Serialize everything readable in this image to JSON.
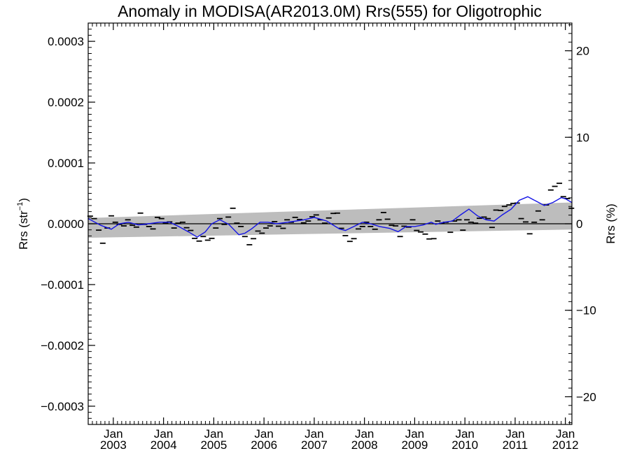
{
  "chart_data": {
    "type": "line",
    "title": "Anomaly in MODISA(AR2013.0M) Rrs(555) for Oligotrophic",
    "ylabel_left": "Rrs (str",
    "ylabel_left_sup": "−1",
    "ylabel_left_end": ")",
    "ylabel_right": "Rrs (%)",
    "xlim": [
      2002.5,
      2012.13
    ],
    "ylim_left": [
      -0.00033,
      0.00033
    ],
    "ylim_right": [
      -23.2,
      23.2
    ],
    "x_ticks": [
      {
        "x": 2003.0,
        "line1": "Jan",
        "line2": "2003"
      },
      {
        "x": 2004.0,
        "line1": "Jan",
        "line2": "2004"
      },
      {
        "x": 2005.0,
        "line1": "Jan",
        "line2": "2005"
      },
      {
        "x": 2006.0,
        "line1": "Jan",
        "line2": "2006"
      },
      {
        "x": 2007.0,
        "line1": "Jan",
        "line2": "2007"
      },
      {
        "x": 2008.0,
        "line1": "Jan",
        "line2": "2008"
      },
      {
        "x": 2009.0,
        "line1": "Jan",
        "line2": "2009"
      },
      {
        "x": 2010.0,
        "line1": "Jan",
        "line2": "2010"
      },
      {
        "x": 2011.0,
        "line1": "Jan",
        "line2": "2011"
      },
      {
        "x": 2012.0,
        "line1": "Jan",
        "line2": "2012"
      }
    ],
    "y_ticks_left": [
      {
        "v": 0.0003,
        "label": "0.0003"
      },
      {
        "v": 0.0002,
        "label": "0.0002"
      },
      {
        "v": 0.0001,
        "label": "0.0001"
      },
      {
        "v": 0.0,
        "label": "0.0000"
      },
      {
        "v": -0.0001,
        "label": "−0.0001"
      },
      {
        "v": -0.0002,
        "label": "−0.0002"
      },
      {
        "v": -0.0003,
        "label": "−0.0003"
      }
    ],
    "y_ticks_right": [
      {
        "v": 20,
        "label": "20"
      },
      {
        "v": 10,
        "label": "10"
      },
      {
        "v": 0,
        "label": "0"
      },
      {
        "v": -10,
        "label": "−10"
      },
      {
        "v": -20,
        "label": "−20"
      }
    ],
    "trend_band": {
      "x": [
        2002.5,
        2012.13
      ],
      "upper": [
        9.5e-06,
        3.5e-05
      ],
      "lower": [
        -2.3e-05,
        -9.5e-06
      ]
    },
    "zero_line": 0.0,
    "smoothed": {
      "x": [
        2002.5,
        2002.75,
        2002.96,
        2003.12,
        2003.3,
        2003.5,
        2003.7,
        2003.92,
        2004.12,
        2004.3,
        2004.5,
        2004.67,
        2004.83,
        2004.96,
        2005.12,
        2005.3,
        2005.5,
        2005.62,
        2005.75,
        2005.92,
        2006.08,
        2006.25,
        2006.42,
        2006.6,
        2006.8,
        2007.0,
        2007.25,
        2007.5,
        2007.62,
        2007.79,
        2007.96,
        2008.12,
        2008.3,
        2008.5,
        2008.67,
        2008.83,
        2009.0,
        2009.17,
        2009.33,
        2009.42,
        2009.58,
        2009.75,
        2009.92,
        2010.08,
        2010.25,
        2010.42,
        2010.58,
        2010.75,
        2010.92,
        2011.08,
        2011.25,
        2011.42,
        2011.58,
        2011.75,
        2011.92,
        2012.0,
        2012.13
      ],
      "y": [
        8.5e-06,
        -2.5e-06,
        -9e-06,
        0.0,
        2.5e-06,
        -2e-06,
        0.0,
        2.5e-06,
        2.5e-06,
        -4.5e-06,
        -1.35e-05,
        -2.2e-05,
        -1.35e-05,
        0.0,
        6.5e-06,
        -1e-06,
        -1.8e-05,
        -1.55e-05,
        -8.5e-06,
        2.5e-06,
        2.5e-06,
        0.0,
        2e-06,
        4e-06,
        6.5e-06,
        1.05e-05,
        4.5e-06,
        -8.5e-06,
        -1.1e-05,
        -4.5e-06,
        2.5e-06,
        0.0,
        -4.5e-06,
        -7.5e-06,
        -1.3e-05,
        -4.5e-06,
        -4.5e-06,
        -2e-06,
        2.5e-06,
        -1e-06,
        2.5e-06,
        4.5e-06,
        1.5e-05,
        2.4e-05,
        1.3e-05,
        6.5e-06,
        4.5e-06,
        1.5e-05,
        2.4e-05,
        3.85e-05,
        4.45e-05,
        3.7e-05,
        3e-05,
        3.5e-05,
        4.3e-05,
        4.1e-05,
        3.5e-05
      ]
    },
    "monthly": [
      [
        2002.54,
        1.25e-05
      ],
      [
        2002.62,
        8.5e-06
      ],
      [
        2002.71,
        -1.05e-05
      ],
      [
        2002.79,
        -3.2e-05
      ],
      [
        2002.88,
        -7e-06
      ],
      [
        2002.96,
        1.3e-05
      ],
      [
        2003.04,
        2.5e-06
      ],
      [
        2003.12,
        -1e-06
      ],
      [
        2003.21,
        -3.5e-06
      ],
      [
        2003.29,
        6.5e-06
      ],
      [
        2003.38,
        -2.5e-06
      ],
      [
        2003.46,
        -5.5e-06
      ],
      [
        2003.54,
        1.75e-05
      ],
      [
        2003.62,
        -1e-06
      ],
      [
        2003.71,
        -4.5e-06
      ],
      [
        2003.79,
        -8.5e-06
      ],
      [
        2003.88,
        1.05e-05
      ],
      [
        2003.96,
        8.5e-06
      ],
      [
        2004.04,
        1e-06
      ],
      [
        2004.12,
        3e-06
      ],
      [
        2004.21,
        -7e-06
      ],
      [
        2004.29,
        1e-06
      ],
      [
        2004.38,
        2.5e-06
      ],
      [
        2004.46,
        -6.5e-06
      ],
      [
        2004.54,
        -1.1e-05
      ],
      [
        2004.62,
        -2.4e-05
      ],
      [
        2004.71,
        -2.85e-05
      ],
      [
        2004.79,
        -2.1e-05
      ],
      [
        2004.88,
        -2.7e-05
      ],
      [
        2004.96,
        -2.4e-05
      ],
      [
        2005.04,
        -7e-06
      ],
      [
        2005.12,
        8.5e-06
      ],
      [
        2005.21,
        -1e-06
      ],
      [
        2005.29,
        1.1e-05
      ],
      [
        2005.38,
        2.55e-05
      ],
      [
        2005.46,
        1e-06
      ],
      [
        2005.54,
        -4.5e-06
      ],
      [
        2005.62,
        -2.1e-05
      ],
      [
        2005.71,
        -3.45e-05
      ],
      [
        2005.79,
        -2.45e-05
      ],
      [
        2005.88,
        -1.2e-05
      ],
      [
        2005.96,
        -1.55e-05
      ],
      [
        2006.04,
        -7e-06
      ],
      [
        2006.12,
        -3.5e-06
      ],
      [
        2006.21,
        3.5e-06
      ],
      [
        2006.29,
        -4e-06
      ],
      [
        2006.38,
        -7.5e-06
      ],
      [
        2006.46,
        6.5e-06
      ],
      [
        2006.54,
        2.5e-06
      ],
      [
        2006.62,
        1.05e-05
      ],
      [
        2006.71,
        7e-06
      ],
      [
        2006.79,
        1.5e-06
      ],
      [
        2006.88,
        4.5e-06
      ],
      [
        2006.96,
        1.15e-05
      ],
      [
        2007.04,
        1.45e-05
      ],
      [
        2007.12,
        6.5e-06
      ],
      [
        2007.21,
        1e-06
      ],
      [
        2007.29,
        9.5e-06
      ],
      [
        2007.38,
        1.7e-05
      ],
      [
        2007.46,
        1.75e-05
      ],
      [
        2007.54,
        -7.5e-06
      ],
      [
        2007.62,
        -1.95e-05
      ],
      [
        2007.71,
        -2.9e-05
      ],
      [
        2007.79,
        -2.45e-05
      ],
      [
        2007.88,
        -8.5e-06
      ],
      [
        2007.96,
        -4.5e-06
      ],
      [
        2008.04,
        2.5e-06
      ],
      [
        2008.12,
        -4.5e-06
      ],
      [
        2008.21,
        -9e-06
      ],
      [
        2008.29,
        6.5e-06
      ],
      [
        2008.38,
        1.85e-05
      ],
      [
        2008.46,
        7.5e-06
      ],
      [
        2008.54,
        -2.5e-06
      ],
      [
        2008.62,
        -3.5e-06
      ],
      [
        2008.71,
        -2.1e-05
      ],
      [
        2008.79,
        -4e-06
      ],
      [
        2008.88,
        -5.5e-06
      ],
      [
        2008.96,
        6.5e-06
      ],
      [
        2009.04,
        -1.1e-05
      ],
      [
        2009.12,
        -1.35e-05
      ],
      [
        2009.21,
        -1.7e-05
      ],
      [
        2009.29,
        -2.5e-05
      ],
      [
        2009.38,
        -2.45e-05
      ],
      [
        2009.46,
        4.5e-06
      ],
      [
        2009.54,
        1e-06
      ],
      [
        2009.62,
        2.5e-06
      ],
      [
        2009.71,
        -1.4e-05
      ],
      [
        2009.79,
        4.5e-06
      ],
      [
        2009.88,
        6.5e-06
      ],
      [
        2009.96,
        -1.05e-05
      ],
      [
        2010.04,
        6.5e-06
      ],
      [
        2010.12,
        2.5e-06
      ],
      [
        2010.21,
        1e-06
      ],
      [
        2010.29,
        9e-06
      ],
      [
        2010.38,
        1.1e-05
      ],
      [
        2010.46,
        8.5e-06
      ],
      [
        2010.54,
        -6e-06
      ],
      [
        2010.62,
        2.25e-05
      ],
      [
        2010.71,
        2.2e-05
      ],
      [
        2010.79,
        2.85e-05
      ],
      [
        2010.88,
        3.1e-05
      ],
      [
        2010.96,
        3.35e-05
      ],
      [
        2011.04,
        3.4e-05
      ],
      [
        2011.12,
        8.5e-06
      ],
      [
        2011.21,
        3e-06
      ],
      [
        2011.29,
        -1.65e-05
      ],
      [
        2011.38,
        2.5e-06
      ],
      [
        2011.46,
        2.1e-05
      ],
      [
        2011.54,
        6.5e-06
      ],
      [
        2011.62,
        3.1e-05
      ],
      [
        2011.71,
        5.55e-05
      ],
      [
        2011.79,
        6.15e-05
      ],
      [
        2011.88,
        6.65e-05
      ],
      [
        2011.96,
        4.45e-05
      ],
      [
        2012.04,
        4.15e-05
      ],
      [
        2012.12,
        2.55e-05
      ]
    ],
    "colors": {
      "band": "#bdbdbd",
      "smooth": "#1414e6",
      "marks": "#000000",
      "zero": "#000000"
    }
  }
}
